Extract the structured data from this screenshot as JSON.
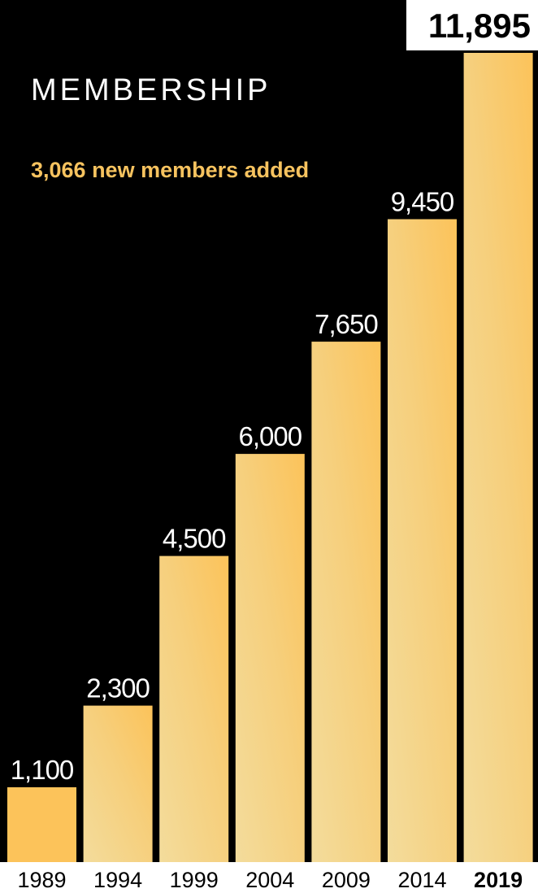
{
  "chart_data": {
    "type": "bar",
    "title": "MEMBERSHIP",
    "subtitle": "3,066 new members added",
    "categories": [
      "1989",
      "1994",
      "1999",
      "2004",
      "2009",
      "2014",
      "2019"
    ],
    "values": [
      1100,
      2300,
      4500,
      6000,
      7650,
      9450,
      11895
    ],
    "value_labels": [
      "1,100",
      "2,300",
      "4,500",
      "6,000",
      "7,650",
      "9,450",
      "11,895"
    ],
    "highlight_category": "2019",
    "ylim": [
      0,
      11895
    ],
    "xlabel": "",
    "ylabel": "",
    "grid": false,
    "legend": "none"
  },
  "colors": {
    "background": "#000000",
    "axis_strip": "#ffffff",
    "title_text": "#ffffff",
    "subtitle_text": "#f7c35f",
    "label_text": "#000000",
    "value_text_on_dark": "#ffffff",
    "bar_gold": "#fcc35a",
    "bar_pale": "#f3dc9c"
  }
}
